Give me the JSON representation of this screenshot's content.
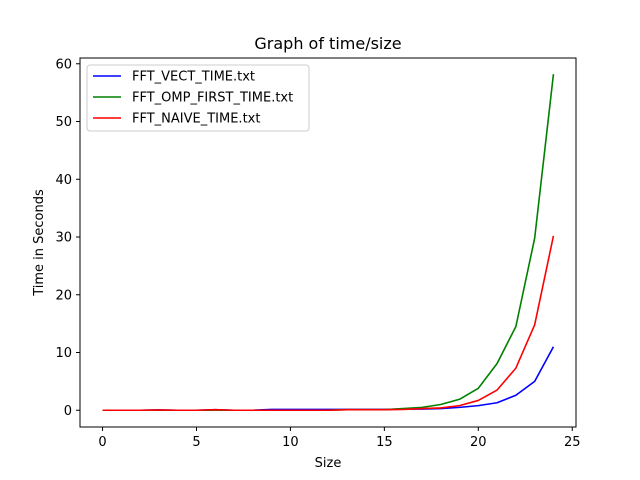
{
  "chart_data": {
    "type": "line",
    "title": "Graph of time/size",
    "xlabel": "Size",
    "ylabel": "Time in Seconds",
    "xlim": [
      -1.2,
      25.2
    ],
    "ylim": [
      -2.9,
      61.0
    ],
    "xticks": [
      0,
      5,
      10,
      15,
      20,
      25
    ],
    "yticks": [
      0,
      10,
      20,
      30,
      40,
      50,
      60
    ],
    "grid": false,
    "legend_position": "top-left",
    "x": [
      0,
      1,
      2,
      3,
      4,
      5,
      6,
      7,
      8,
      9,
      10,
      11,
      12,
      13,
      14,
      15,
      16,
      17,
      18,
      19,
      20,
      21,
      22,
      23,
      24
    ],
    "series": [
      {
        "name": "FFT_VECT_TIME.txt",
        "color": "#0000ff",
        "values": [
          0.0,
          0.0,
          0.0,
          0.05,
          0.0,
          0.0,
          0.1,
          0.0,
          0.0,
          0.15,
          0.15,
          0.15,
          0.15,
          0.15,
          0.15,
          0.15,
          0.2,
          0.2,
          0.3,
          0.5,
          0.8,
          1.3,
          2.6,
          5.0,
          11.0
        ]
      },
      {
        "name": "FFT_OMP_FIRST_TIME.txt",
        "color": "#008000",
        "values": [
          0.0,
          0.0,
          0.0,
          0.0,
          0.0,
          0.0,
          0.0,
          0.0,
          0.0,
          0.0,
          0.0,
          0.0,
          0.0,
          0.1,
          0.1,
          0.1,
          0.3,
          0.5,
          1.0,
          1.9,
          3.8,
          8.1,
          14.5,
          29.8,
          58.2
        ]
      },
      {
        "name": "FFT_NAIVE_TIME.txt",
        "color": "#ff0000",
        "values": [
          0.0,
          0.0,
          0.0,
          0.05,
          0.0,
          0.0,
          0.1,
          0.0,
          0.0,
          0.0,
          0.0,
          0.0,
          0.0,
          0.1,
          0.1,
          0.1,
          0.15,
          0.3,
          0.4,
          0.8,
          1.7,
          3.5,
          7.3,
          14.8,
          30.2
        ]
      }
    ]
  }
}
